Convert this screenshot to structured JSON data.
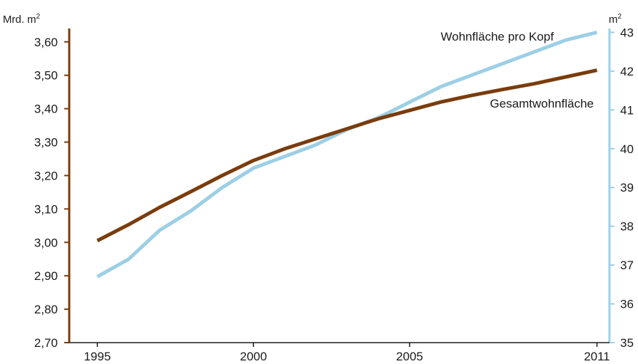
{
  "chart_data": {
    "type": "line",
    "left_unit": "Mrd. m",
    "right_unit": "m",
    "unit_superscript": "2",
    "x": [
      1995,
      1996,
      1997,
      1998,
      1999,
      2000,
      2001,
      2002,
      2003,
      2004,
      2005,
      2006,
      2007,
      2008,
      2009,
      2010,
      2011
    ],
    "x_ticks": [
      "1995",
      "2000",
      "2005",
      "2011"
    ],
    "y_left": {
      "ticks": [
        "2,70",
        "2,80",
        "2,90",
        "3,00",
        "3,10",
        "3,20",
        "3,30",
        "3,40",
        "3,50",
        "3,60"
      ],
      "range": [
        2.7,
        3.64
      ]
    },
    "y_right": {
      "ticks": [
        "35",
        "36",
        "37",
        "38",
        "39",
        "40",
        "41",
        "42",
        "43"
      ],
      "range": [
        35,
        43.1
      ]
    },
    "series": [
      {
        "name": "Gesamtwohnfläche",
        "axis": "left",
        "color": "#7a3c0c",
        "values": [
          3.005,
          3.053,
          3.105,
          3.152,
          3.2,
          3.245,
          3.28,
          3.31,
          3.34,
          3.37,
          3.395,
          3.42,
          3.44,
          3.458,
          3.475,
          3.495,
          3.515
        ]
      },
      {
        "name": "Wohnfläche pro Kopf",
        "axis": "right",
        "color": "#9ccfe6",
        "values": [
          36.7,
          37.15,
          37.9,
          38.4,
          39.0,
          39.5,
          39.8,
          40.1,
          40.5,
          40.8,
          41.2,
          41.6,
          41.9,
          42.2,
          42.5,
          42.8,
          43.0
        ]
      }
    ]
  }
}
